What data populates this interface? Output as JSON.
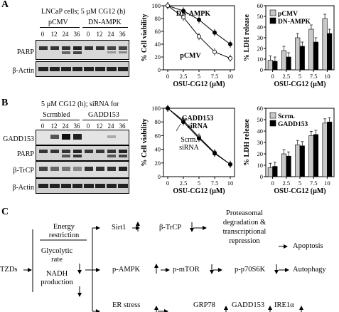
{
  "panels": {
    "A": {
      "letter": "A",
      "blot": {
        "header": "LNCaP cells; 5 µM CG12 (h)",
        "groups": [
          "pCMV",
          "DN-AMPK"
        ],
        "lanes": [
          "0",
          "12",
          "24",
          "36",
          "0",
          "12",
          "24",
          "36"
        ],
        "bands": [
          "PARP",
          "β-Actin"
        ]
      },
      "viability": {
        "ylabel": "% Cell viability",
        "xlabel": "OSU-CG12 (µM)",
        "legend_a": "DN-AMPK",
        "legend_b": "pCMV",
        "yticks": [
          "0",
          "20",
          "40",
          "60",
          "80",
          "100"
        ],
        "xticks": [
          "0",
          "2.5",
          "5",
          "7.5",
          "10"
        ]
      },
      "ldh": {
        "ylabel": "% LDH release",
        "xlabel": "OSU-CG12 (µM)",
        "legend": [
          "pCMV",
          "DN-AMPK"
        ],
        "yticks": [
          "0",
          "10",
          "20",
          "30",
          "40",
          "50",
          "60"
        ],
        "xticks": [
          "0",
          "2.5",
          "5",
          "7.5",
          "10"
        ]
      }
    },
    "B": {
      "letter": "B",
      "blot": {
        "header": "5 µM CG12 (h); siRNA for",
        "groups": [
          "Scrmbled",
          "GADD153"
        ],
        "lanes": [
          "0",
          "12",
          "24",
          "36",
          "0",
          "12",
          "24",
          "36"
        ],
        "bands": [
          "GADD153",
          "PARP",
          "β-TrCP",
          "β-Actin"
        ]
      },
      "viability": {
        "ylabel": "% Cell viability",
        "xlabel": "OSU-CG12 (µM)",
        "ann_a": "GADD153",
        "ann_a2": "siRNA",
        "ann_b": "Scrm.",
        "ann_b2": "siRNA",
        "yticks": [
          "0",
          "20",
          "40",
          "60",
          "80",
          "100"
        ],
        "xticks": [
          "0",
          "2.5",
          "5",
          "7.5",
          "10"
        ]
      },
      "ldh": {
        "ylabel": "% LDH release",
        "xlabel": "OSU-CG12 (µM)",
        "legend": [
          "Scrm.",
          "GADD153"
        ],
        "yticks": [
          "0",
          "10",
          "20",
          "30",
          "40",
          "50",
          "60"
        ],
        "xticks": [
          "0",
          "2.5",
          "5",
          "7.5",
          "10"
        ]
      }
    },
    "C": {
      "letter": "C",
      "tzds": "TZDs",
      "energy1": "Energy",
      "energy2": "restriction",
      "glyco1": "Glycolytic",
      "glyco2": "rate",
      "nadh1": "NADH",
      "nadh2": "production",
      "sirt1": "Sirt1",
      "btrcp": "β-TrCP",
      "prot1": "Proteasomal",
      "prot2": "degradation &",
      "prot3": "transcriptional",
      "prot4": "repression",
      "apoptosis": "Apoptosis",
      "pampk": "p-AMPK",
      "pmtor": "p-mTOR",
      "p70": "p-p70S6K",
      "autophagy": "Autophagy",
      "er": "ER stress",
      "grp78": "GRP78",
      "gadd": "GADD153",
      "ire": "IRE1α"
    }
  },
  "chart_data": [
    {
      "type": "line",
      "ylabel": "% Cell viability",
      "xlabel": "OSU-CG12 (µM)",
      "x": [
        0,
        2.5,
        5,
        7.5,
        10
      ],
      "ylim": [
        0,
        100
      ],
      "series": [
        {
          "name": "DN-AMPK",
          "values": [
            100,
            92,
            78,
            58,
            40
          ]
        },
        {
          "name": "pCMV",
          "values": [
            100,
            82,
            52,
            28,
            18
          ]
        }
      ]
    },
    {
      "type": "bar",
      "ylabel": "% LDH release",
      "xlabel": "OSU-CG12 (µM)",
      "categories": [
        "0",
        "2.5",
        "5",
        "7.5",
        "10"
      ],
      "ylim": [
        0,
        60
      ],
      "series": [
        {
          "name": "pCMV",
          "values": [
            9,
            18,
            30,
            38,
            48
          ]
        },
        {
          "name": "DN-AMPK",
          "values": [
            8,
            12,
            22,
            26,
            34
          ]
        }
      ]
    },
    {
      "type": "line",
      "ylabel": "% Cell viability",
      "xlabel": "OSU-CG12 (µM)",
      "x": [
        0,
        2.5,
        5,
        7.5,
        10
      ],
      "ylim": [
        0,
        100
      ],
      "series": [
        {
          "name": "Scrm.",
          "values": [
            100,
            82,
            58,
            35,
            18
          ]
        },
        {
          "name": "GADD153",
          "values": [
            100,
            80,
            56,
            34,
            18
          ]
        }
      ]
    },
    {
      "type": "bar",
      "ylabel": "% LDH release",
      "xlabel": "OSU-CG12 (µM)",
      "categories": [
        "0",
        "2.5",
        "5",
        "7.5",
        "10"
      ],
      "ylim": [
        0,
        60
      ],
      "series": [
        {
          "name": "Scrm.",
          "values": [
            8,
            20,
            28,
            36,
            47
          ]
        },
        {
          "name": "GADD153",
          "values": [
            9,
            18,
            27,
            37,
            48
          ]
        }
      ]
    }
  ]
}
